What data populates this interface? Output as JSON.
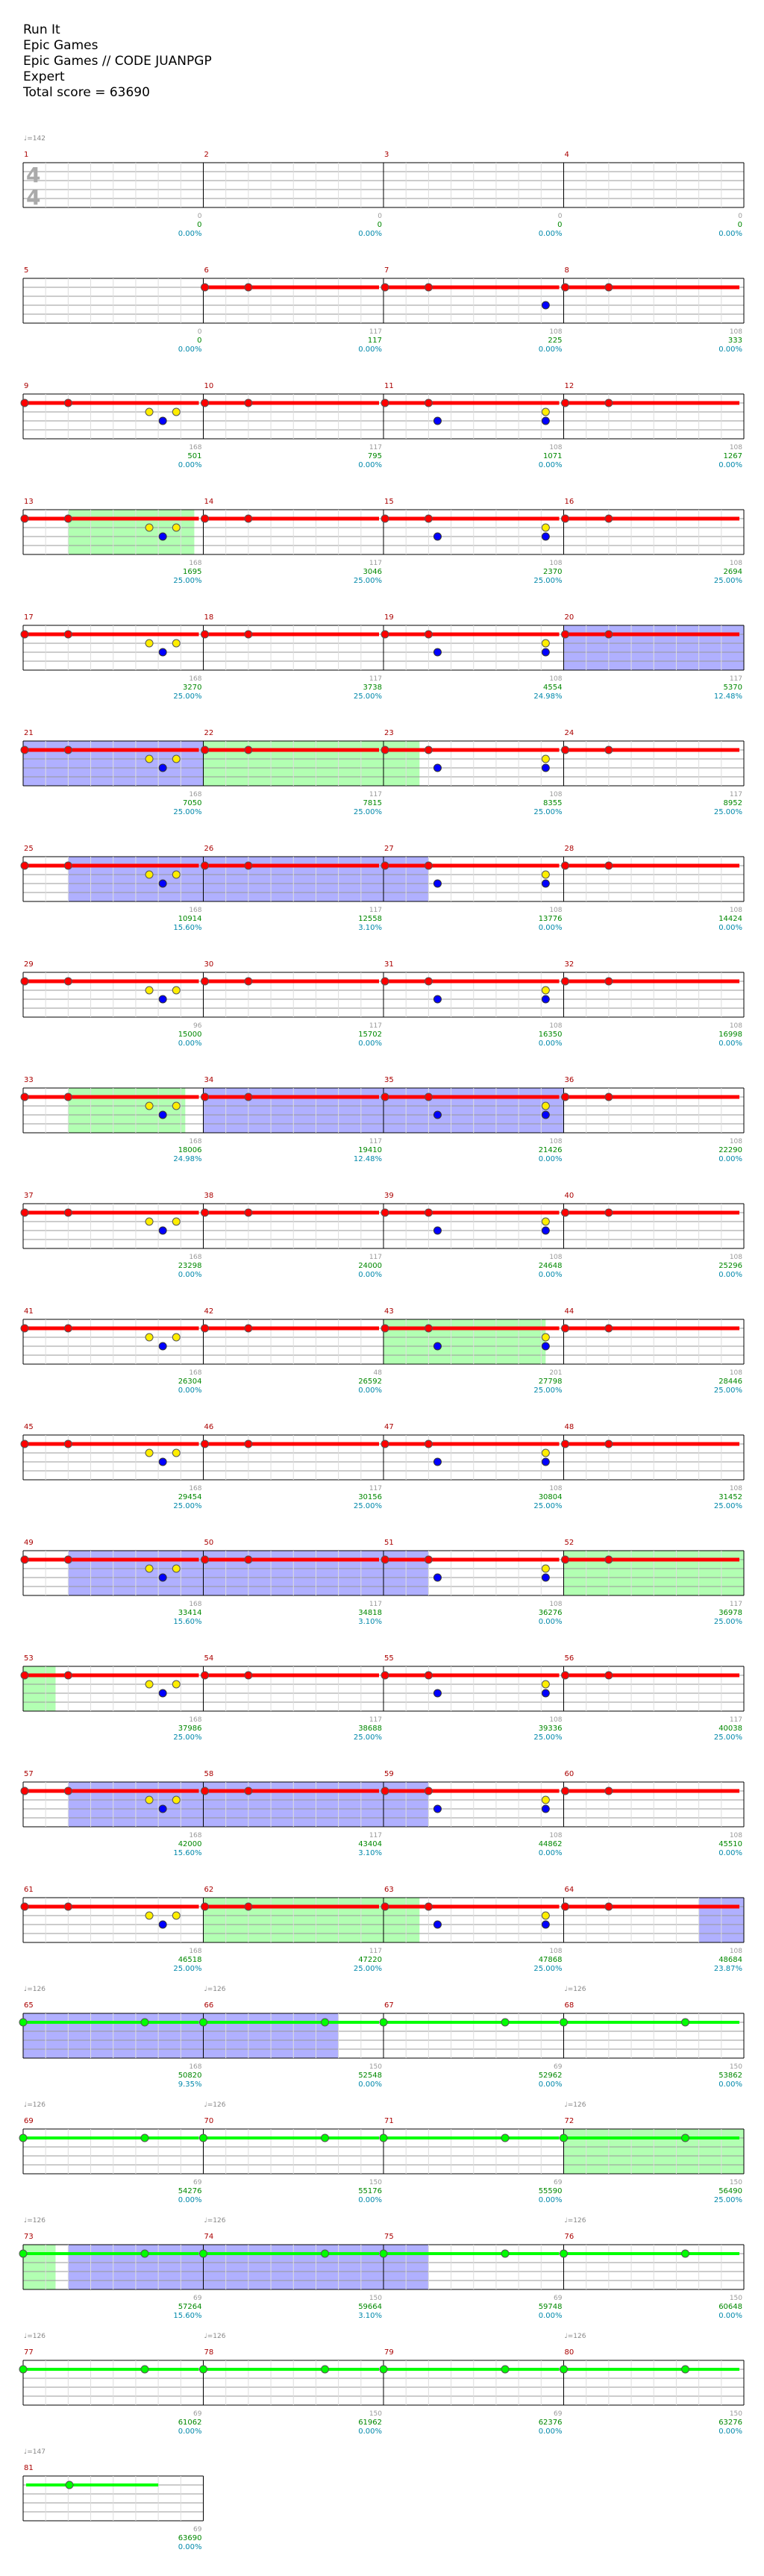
{
  "song": {
    "title": "Run It",
    "artist": "Epic Games",
    "charter": "Epic Games // CODE JUANPGP",
    "difficulty": "Expert",
    "total_score_label": "Total score = 63690"
  },
  "colors": {
    "red_lane": "#ff0000",
    "green_lane": "#00ff00",
    "yellow_note": "#ffee00",
    "blue_note": "#0000ff",
    "overdrive_fill": "#7b7bff",
    "solo_fill": "#7fff7f",
    "measure_number": "#aa0000",
    "score": "#008800",
    "percent": "#0088aa",
    "per_measure": "#999999",
    "tempo": "#888888"
  },
  "tempo_markers": [
    {
      "measure": 1,
      "label": "♩=142"
    },
    {
      "measure": 65,
      "label": "♩=126"
    },
    {
      "measure": 66,
      "label": "♩=126"
    },
    {
      "measure": 68,
      "label": "♩=126"
    },
    {
      "measure": 69,
      "label": "♩=126"
    },
    {
      "measure": 70,
      "label": "♩=126"
    },
    {
      "measure": 72,
      "label": "♩=126"
    },
    {
      "measure": 73,
      "label": "♩=126"
    },
    {
      "measure": 74,
      "label": "♩=126"
    },
    {
      "measure": 76,
      "label": "♩=126"
    },
    {
      "measure": 77,
      "label": "♩=126"
    },
    {
      "measure": 78,
      "label": "♩=126"
    },
    {
      "measure": 80,
      "label": "♩=126"
    },
    {
      "measure": 81,
      "label": "♩=147"
    }
  ],
  "time_signature": "4/4",
  "rows": [
    {
      "measures": [
        1,
        2,
        3,
        4
      ],
      "stats": [
        {
          "m": "0",
          "s": "0",
          "p": "0.00%"
        },
        {
          "m": "0",
          "s": "0",
          "p": "0.00%"
        },
        {
          "m": "0",
          "s": "0",
          "p": "0.00%"
        },
        {
          "m": "0",
          "s": "0",
          "p": "0.00%"
        }
      ]
    },
    {
      "measures": [
        5,
        6,
        7,
        8
      ],
      "stats": [
        {
          "m": "0",
          "s": "0",
          "p": "0.00%"
        },
        {
          "m": "117",
          "s": "117",
          "p": "0.00%"
        },
        {
          "m": "108",
          "s": "225",
          "p": "0.00%"
        },
        {
          "m": "108",
          "s": "333",
          "p": "0.00%"
        }
      ]
    },
    {
      "measures": [
        9,
        10,
        11,
        12
      ],
      "stats": [
        {
          "m": "168",
          "s": "501",
          "p": "0.00%"
        },
        {
          "m": "117",
          "s": "795",
          "p": "0.00%"
        },
        {
          "m": "108",
          "s": "1071",
          "p": "0.00%"
        },
        {
          "m": "108",
          "s": "1267",
          "p": "0.00%"
        }
      ]
    },
    {
      "measures": [
        13,
        14,
        15,
        16
      ],
      "stats": [
        {
          "m": "168",
          "s": "1695",
          "p": "25.00%"
        },
        {
          "m": "117",
          "s": "3046",
          "p": "25.00%"
        },
        {
          "m": "108",
          "s": "2370",
          "p": "25.00%"
        },
        {
          "m": "108",
          "s": "2694",
          "p": "25.00%"
        }
      ]
    },
    {
      "measures": [
        17,
        18,
        19,
        20
      ],
      "stats": [
        {
          "m": "168",
          "s": "3270",
          "p": "25.00%"
        },
        {
          "m": "117",
          "s": "3738",
          "p": "25.00%"
        },
        {
          "m": "108",
          "s": "4554",
          "p": "24.98%"
        },
        {
          "m": "117",
          "s": "5370",
          "p": "12.48%"
        }
      ]
    },
    {
      "measures": [
        21,
        22,
        23,
        24
      ],
      "stats": [
        {
          "m": "168",
          "s": "7050",
          "p": "25.00%"
        },
        {
          "m": "117",
          "s": "7815",
          "p": "25.00%"
        },
        {
          "m": "108",
          "s": "8355",
          "p": "25.00%"
        },
        {
          "m": "117",
          "s": "8952",
          "p": "25.00%"
        }
      ]
    },
    {
      "measures": [
        25,
        26,
        27,
        28
      ],
      "stats": [
        {
          "m": "168",
          "s": "10914",
          "p": "15.60%"
        },
        {
          "m": "117",
          "s": "12558",
          "p": "3.10%"
        },
        {
          "m": "108",
          "s": "13776",
          "p": "0.00%"
        },
        {
          "m": "108",
          "s": "14424",
          "p": "0.00%"
        }
      ]
    },
    {
      "measures": [
        29,
        30,
        31,
        32
      ],
      "stats": [
        {
          "m": "96",
          "s": "15000",
          "p": "0.00%"
        },
        {
          "m": "117",
          "s": "15702",
          "p": "0.00%"
        },
        {
          "m": "108",
          "s": "16350",
          "p": "0.00%"
        },
        {
          "m": "108",
          "s": "16998",
          "p": "0.00%"
        }
      ]
    },
    {
      "measures": [
        33,
        34,
        35,
        36
      ],
      "stats": [
        {
          "m": "168",
          "s": "18006",
          "p": "24.98%"
        },
        {
          "m": "117",
          "s": "19410",
          "p": "12.48%"
        },
        {
          "m": "108",
          "s": "21426",
          "p": "0.00%"
        },
        {
          "m": "108",
          "s": "22290",
          "p": "0.00%"
        }
      ]
    },
    {
      "measures": [
        37,
        38,
        39,
        40
      ],
      "stats": [
        {
          "m": "168",
          "s": "23298",
          "p": "0.00%"
        },
        {
          "m": "117",
          "s": "24000",
          "p": "0.00%"
        },
        {
          "m": "108",
          "s": "24648",
          "p": "0.00%"
        },
        {
          "m": "108",
          "s": "25296",
          "p": "0.00%"
        }
      ]
    },
    {
      "measures": [
        41,
        42,
        43,
        44
      ],
      "stats": [
        {
          "m": "168",
          "s": "26304",
          "p": "0.00%"
        },
        {
          "m": "48",
          "s": "26592",
          "p": "0.00%"
        },
        {
          "m": "201",
          "s": "27798",
          "p": "25.00%"
        },
        {
          "m": "108",
          "s": "28446",
          "p": "25.00%"
        }
      ]
    },
    {
      "measures": [
        45,
        46,
        47,
        48
      ],
      "stats": [
        {
          "m": "168",
          "s": "29454",
          "p": "25.00%"
        },
        {
          "m": "117",
          "s": "30156",
          "p": "25.00%"
        },
        {
          "m": "108",
          "s": "30804",
          "p": "25.00%"
        },
        {
          "m": "108",
          "s": "31452",
          "p": "25.00%"
        }
      ]
    },
    {
      "measures": [
        49,
        50,
        51,
        52
      ],
      "stats": [
        {
          "m": "168",
          "s": "33414",
          "p": "15.60%"
        },
        {
          "m": "117",
          "s": "34818",
          "p": "3.10%"
        },
        {
          "m": "108",
          "s": "36276",
          "p": "0.00%"
        },
        {
          "m": "117",
          "s": "36978",
          "p": "25.00%"
        }
      ]
    },
    {
      "measures": [
        53,
        54,
        55,
        56
      ],
      "stats": [
        {
          "m": "168",
          "s": "37986",
          "p": "25.00%"
        },
        {
          "m": "117",
          "s": "38688",
          "p": "25.00%"
        },
        {
          "m": "108",
          "s": "39336",
          "p": "25.00%"
        },
        {
          "m": "117",
          "s": "40038",
          "p": "25.00%"
        }
      ]
    },
    {
      "measures": [
        57,
        58,
        59,
        60
      ],
      "stats": [
        {
          "m": "168",
          "s": "42000",
          "p": "15.60%"
        },
        {
          "m": "117",
          "s": "43404",
          "p": "3.10%"
        },
        {
          "m": "108",
          "s": "44862",
          "p": "0.00%"
        },
        {
          "m": "108",
          "s": "45510",
          "p": "0.00%"
        }
      ]
    },
    {
      "measures": [
        61,
        62,
        63,
        64
      ],
      "stats": [
        {
          "m": "168",
          "s": "46518",
          "p": "25.00%"
        },
        {
          "m": "117",
          "s": "47220",
          "p": "25.00%"
        },
        {
          "m": "108",
          "s": "47868",
          "p": "25.00%"
        },
        {
          "m": "108",
          "s": "48684",
          "p": "23.87%"
        }
      ]
    },
    {
      "measures": [
        65,
        66,
        67,
        68
      ],
      "stats": [
        {
          "m": "168",
          "s": "50820",
          "p": "9.35%"
        },
        {
          "m": "150",
          "s": "52548",
          "p": "0.00%"
        },
        {
          "m": "69",
          "s": "52962",
          "p": "0.00%"
        },
        {
          "m": "150",
          "s": "53862",
          "p": "0.00%"
        }
      ]
    },
    {
      "measures": [
        69,
        70,
        71,
        72
      ],
      "stats": [
        {
          "m": "69",
          "s": "54276",
          "p": "0.00%"
        },
        {
          "m": "150",
          "s": "55176",
          "p": "0.00%"
        },
        {
          "m": "69",
          "s": "55590",
          "p": "0.00%"
        },
        {
          "m": "150",
          "s": "56490",
          "p": "25.00%"
        }
      ]
    },
    {
      "measures": [
        73,
        74,
        75,
        76
      ],
      "stats": [
        {
          "m": "69",
          "s": "57264",
          "p": "15.60%"
        },
        {
          "m": "150",
          "s": "59664",
          "p": "3.10%"
        },
        {
          "m": "69",
          "s": "59748",
          "p": "0.00%"
        },
        {
          "m": "150",
          "s": "60648",
          "p": "0.00%"
        }
      ]
    },
    {
      "measures": [
        77,
        78,
        79,
        80
      ],
      "stats": [
        {
          "m": "69",
          "s": "61062",
          "p": "0.00%"
        },
        {
          "m": "150",
          "s": "61962",
          "p": "0.00%"
        },
        {
          "m": "69",
          "s": "62376",
          "p": "0.00%"
        },
        {
          "m": "150",
          "s": "63276",
          "p": "0.00%"
        }
      ]
    },
    {
      "measures": [
        81
      ],
      "stats": [
        {
          "m": "69",
          "s": "63690",
          "p": "0.00%"
        }
      ]
    }
  ]
}
